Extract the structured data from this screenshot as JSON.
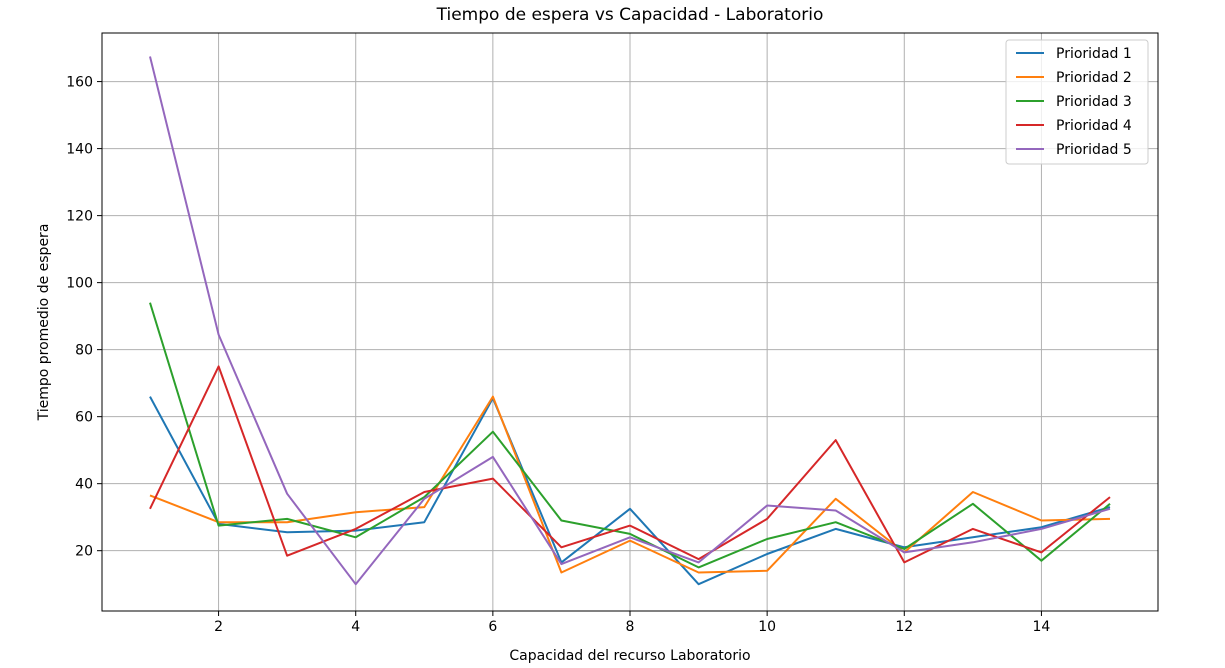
{
  "chart_data": {
    "type": "line",
    "title": "Tiempo de espera vs Capacidad - Laboratorio",
    "xlabel": "Capacidad del recurso Laboratorio",
    "ylabel": "Tiempo promedio de espera",
    "xlim": [
      0.3,
      15.7
    ],
    "ylim": [
      2,
      174.5
    ],
    "x_ticks": [
      2,
      4,
      6,
      8,
      10,
      12,
      14
    ],
    "y_ticks": [
      20,
      40,
      60,
      80,
      100,
      120,
      140,
      160
    ],
    "grid": true,
    "legend_position": "top-right",
    "x": [
      1,
      2,
      3,
      4,
      5,
      6,
      7,
      8,
      9,
      10,
      11,
      12,
      13,
      14,
      15
    ],
    "series": [
      {
        "name": "Prioridad 1",
        "color": "#1f77b4",
        "values": [
          66,
          28,
          25.5,
          26,
          28.5,
          65.5,
          16.5,
          32.5,
          10,
          19,
          26.5,
          21,
          24,
          27,
          33
        ]
      },
      {
        "name": "Prioridad 2",
        "color": "#ff7f0e",
        "values": [
          36.5,
          28.5,
          28.5,
          31.5,
          33,
          66,
          13.5,
          23,
          13.5,
          14,
          35.5,
          19.5,
          37.5,
          29,
          29.5
        ]
      },
      {
        "name": "Prioridad 3",
        "color": "#2ca02c",
        "values": [
          94,
          27.5,
          29.5,
          24,
          36,
          55.5,
          29,
          25,
          15,
          23.5,
          28.5,
          20.5,
          34,
          17,
          34
        ]
      },
      {
        "name": "Prioridad 4",
        "color": "#d62728",
        "values": [
          32.5,
          75,
          18.5,
          26.5,
          37.5,
          41.5,
          21,
          27.5,
          17.5,
          29.5,
          53,
          16.5,
          26.5,
          19.5,
          36
        ]
      },
      {
        "name": "Prioridad 5",
        "color": "#9467bd",
        "values": [
          167.5,
          84.5,
          37,
          10,
          35.5,
          48,
          16,
          24,
          16.5,
          33.5,
          32,
          19.5,
          22.5,
          26.5,
          32.5
        ]
      }
    ]
  }
}
